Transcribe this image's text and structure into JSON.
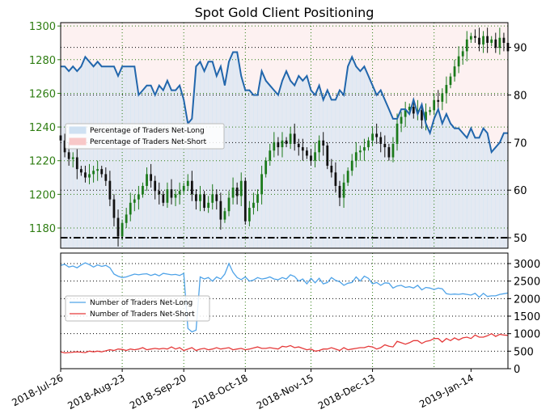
{
  "chart_data": [
    {
      "type": "line",
      "title": "Spot Gold Client Positioning",
      "left_axis": {
        "ylim": [
          1168,
          1302
        ],
        "ticks": [
          1180,
          1200,
          1220,
          1240,
          1260,
          1280,
          1300
        ],
        "color": "#2e7d12"
      },
      "right_axis": {
        "ylim": [
          47.8,
          95.2
        ],
        "ticks": [
          50,
          60,
          70,
          80,
          90
        ]
      },
      "grid": true,
      "threshold_line": 50,
      "legend": {
        "placement": "left",
        "items": [
          {
            "label": "Percentage of Traders Net-Long",
            "color": "#cfe1f2"
          },
          {
            "label": "Percentage of Traders Net-Short",
            "color": "#f8c8c8"
          }
        ]
      },
      "net_long_pct": {
        "color": "#2166ac",
        "values": [
          86,
          86,
          85,
          86,
          85,
          86,
          88,
          87,
          86,
          87,
          86,
          86,
          86,
          86,
          84,
          86,
          86,
          86,
          86,
          80,
          81,
          82,
          82,
          80,
          82,
          81,
          83,
          81,
          81,
          82,
          79,
          74,
          75,
          86,
          87,
          85,
          87,
          87,
          84,
          86,
          82,
          87,
          89,
          89,
          84,
          81,
          81,
          80,
          80,
          85,
          83,
          82,
          81,
          80,
          83,
          85,
          83,
          82,
          84,
          83,
          84,
          81,
          80,
          82,
          79,
          81,
          79,
          79,
          81,
          80,
          86,
          88,
          86,
          85,
          86,
          84,
          82,
          80,
          81,
          79,
          77,
          75,
          75,
          77,
          77,
          76,
          79,
          76,
          78,
          74,
          72,
          75,
          77,
          74,
          76,
          74,
          73,
          73,
          72,
          71,
          73,
          71,
          71,
          73,
          72,
          68,
          69,
          70,
          72,
          72
        ]
      },
      "price_candles": {
        "color": "#2e7d12",
        "close": [
          1232,
          1225,
          1221,
          1222,
          1215,
          1213,
          1210,
          1212,
          1214,
          1215,
          1212,
          1208,
          1197,
          1186,
          1175,
          1183,
          1188,
          1195,
          1197,
          1200,
          1205,
          1212,
          1208,
          1202,
          1200,
          1195,
          1203,
          1198,
          1200,
          1202,
          1205,
          1208,
          1200,
          1196,
          1200,
          1192,
          1195,
          1200,
          1196,
          1185,
          1190,
          1198,
          1204,
          1199,
          1208,
          1184,
          1192,
          1195,
          1200,
          1212,
          1220,
          1226,
          1231,
          1228,
          1232,
          1230,
          1236,
          1230,
          1228,
          1226,
          1223,
          1220,
          1225,
          1232,
          1229,
          1217,
          1213,
          1205,
          1198,
          1207,
          1214,
          1220,
          1225,
          1226,
          1228,
          1232,
          1236,
          1234,
          1230,
          1228,
          1222,
          1230,
          1242,
          1246,
          1250,
          1252,
          1248,
          1250,
          1244,
          1249,
          1250,
          1256,
          1255,
          1260,
          1265,
          1270,
          1276,
          1282,
          1285,
          1292,
          1294,
          1293,
          1289,
          1294,
          1290,
          1292,
          1287,
          1293,
          1290,
          1285
        ]
      }
    },
    {
      "type": "line",
      "left_axis": {
        "ylim": [
          0,
          3300
        ],
        "ticks": [
          0,
          500,
          1000,
          1500,
          2000,
          2500,
          3000
        ]
      },
      "grid": true,
      "legend": {
        "placement": "left",
        "items": [
          {
            "label": "Number of Traders Net-Long",
            "color": "#4fa3e8"
          },
          {
            "label": "Number of Traders Net-Short",
            "color": "#e53a3a"
          }
        ]
      },
      "series": [
        {
          "name": "Number of Traders Net-Long",
          "color": "#4fa3e8",
          "values": [
            2950,
            2980,
            2900,
            2930,
            2880,
            2960,
            3020,
            2970,
            2900,
            2960,
            2920,
            2950,
            2880,
            2700,
            2640,
            2600,
            2620,
            2660,
            2700,
            2680,
            2700,
            2710,
            2660,
            2700,
            2650,
            2720,
            2700,
            2680,
            2690,
            2660,
            2720,
            1150,
            1050,
            1100,
            2620,
            2560,
            2600,
            2500,
            2620,
            2560,
            2700,
            3000,
            2750,
            2600,
            2540,
            2620,
            2500,
            2530,
            2600,
            2560,
            2580,
            2620,
            2560,
            2540,
            2600,
            2560,
            2680,
            2630,
            2500,
            2560,
            2420,
            2580,
            2450,
            2580,
            2420,
            2460,
            2600,
            2520,
            2480,
            2380,
            2440,
            2460,
            2620,
            2500,
            2640,
            2580,
            2420,
            2460,
            2380,
            2450,
            2440,
            2300,
            2360,
            2380,
            2320,
            2340,
            2300,
            2380,
            2250,
            2320,
            2300,
            2260,
            2300,
            2280,
            2140,
            2120,
            2130,
            2120,
            2140,
            2120,
            2100,
            2150,
            2040,
            2150,
            2060,
            2080,
            2080,
            2120,
            2140,
            2160
          ]
        },
        {
          "name": "Number of Traders Net-Short",
          "color": "#e53a3a",
          "values": [
            480,
            450,
            460,
            470,
            480,
            470,
            460,
            500,
            480,
            500,
            480,
            510,
            540,
            520,
            560,
            550,
            520,
            560,
            540,
            560,
            600,
            540,
            560,
            580,
            560,
            580,
            560,
            620,
            560,
            600,
            520,
            560,
            600,
            520,
            560,
            580,
            540,
            560,
            600,
            560,
            580,
            600,
            540,
            560,
            580,
            540,
            560,
            590,
            620,
            580,
            580,
            600,
            580,
            560,
            640,
            620,
            660,
            600,
            620,
            580,
            540,
            560,
            500,
            520,
            560,
            560,
            600,
            560,
            520,
            600,
            540,
            560,
            580,
            600,
            600,
            640,
            620,
            560,
            600,
            680,
            640,
            620,
            780,
            740,
            700,
            740,
            800,
            800,
            720,
            780,
            800,
            860,
            860,
            760,
            860,
            800,
            880,
            820,
            880,
            900,
            860,
            960,
            900,
            900,
            940,
            1000,
            920,
            980,
            960,
            950
          ]
        }
      ]
    }
  ],
  "x_axis": {
    "tick_labels": [
      "2018-Jul-26",
      "2018-Aug-23",
      "2018-Sep-20",
      "2018-Oct-18",
      "2018-Nov-15",
      "2018-Dec-13",
      "2019-Jan-14"
    ]
  }
}
